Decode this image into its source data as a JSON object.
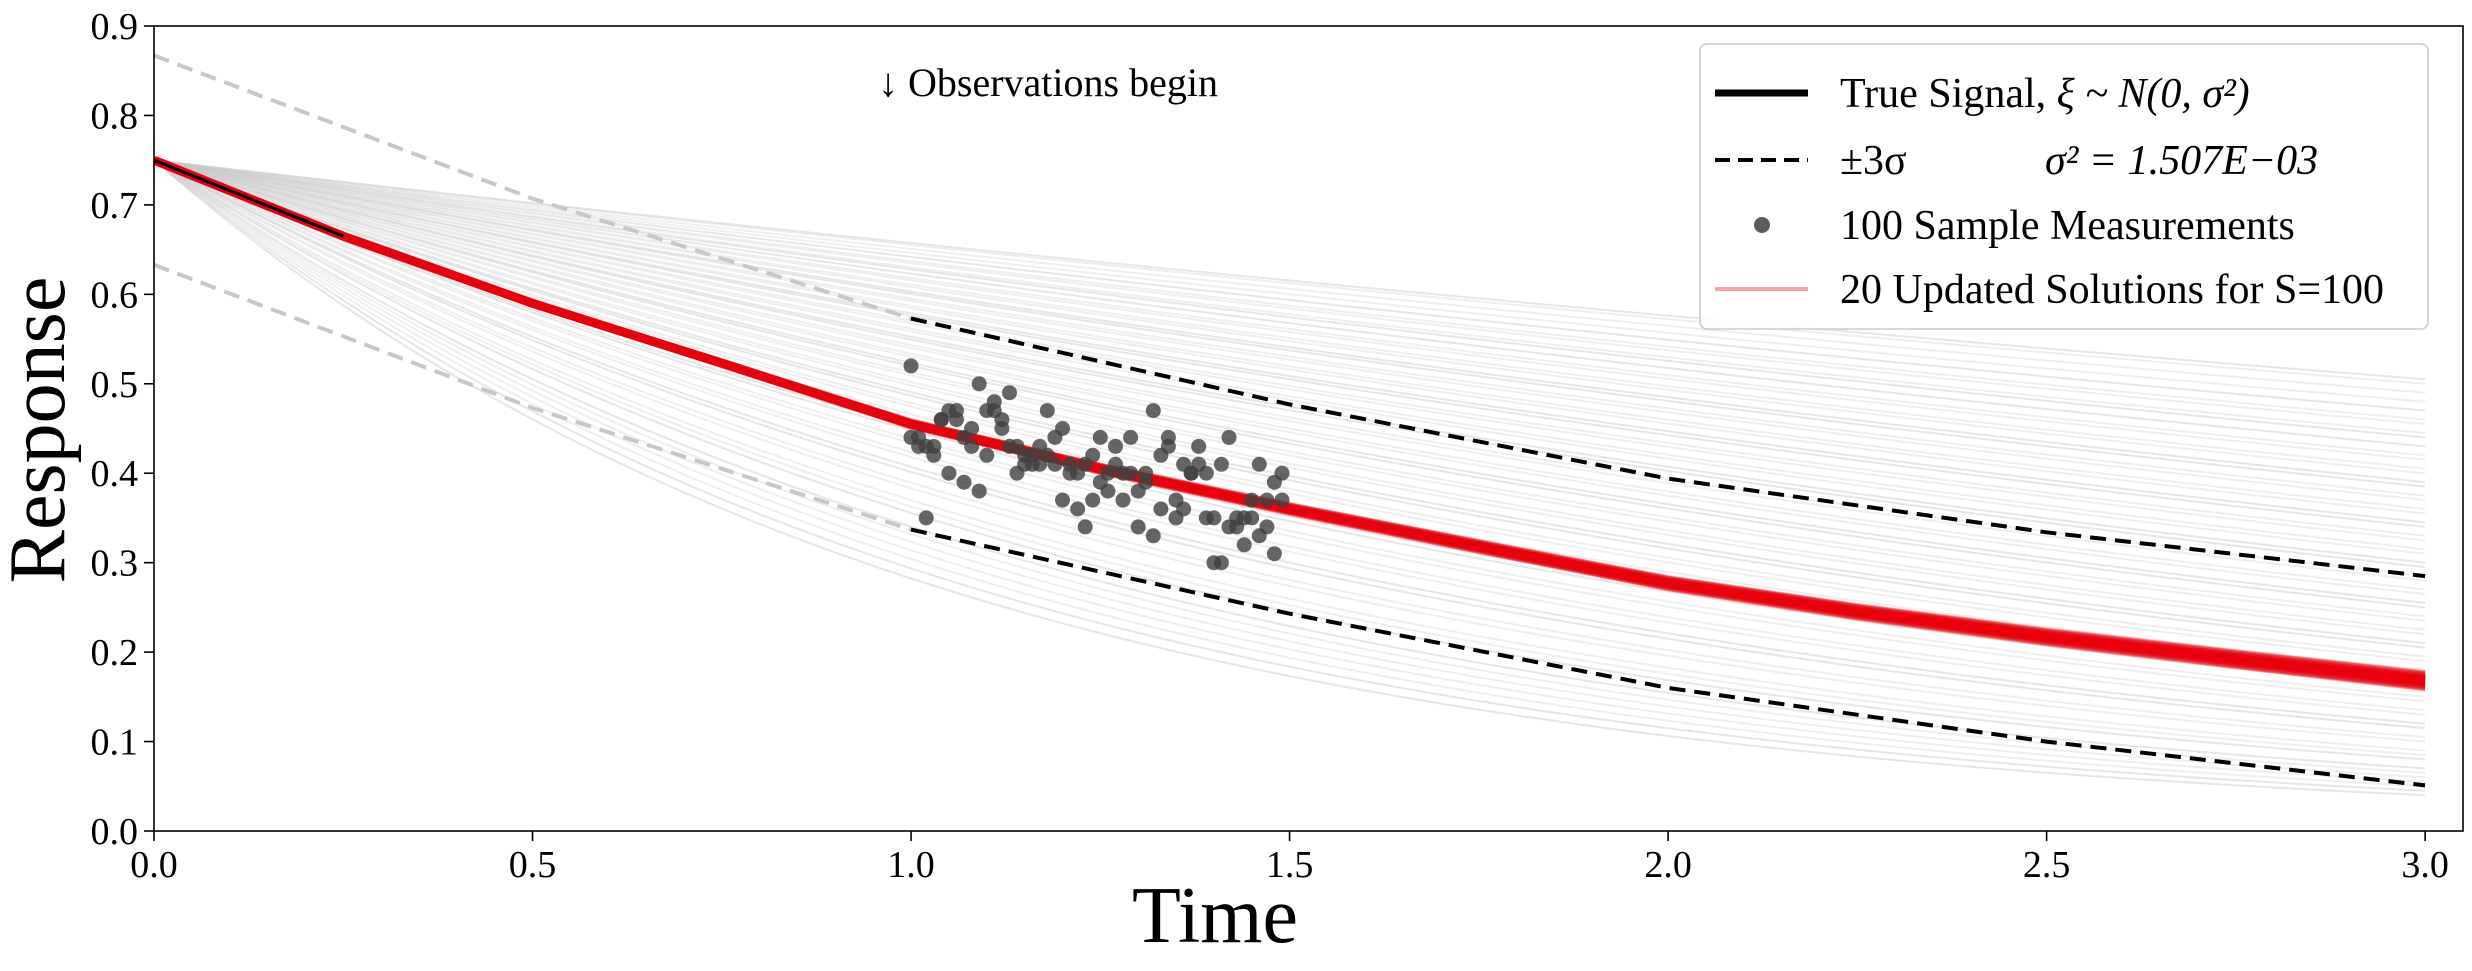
{
  "chart_data": {
    "type": "line",
    "xlabel": "Time",
    "ylabel": "Response",
    "xlim": [
      0.0,
      3.05
    ],
    "ylim": [
      0.0,
      0.9
    ],
    "x_ticks": [
      "0.0",
      "0.5",
      "1.0",
      "1.5",
      "2.0",
      "2.5",
      "3.0"
    ],
    "y_ticks": [
      "0.0",
      "0.1",
      "0.2",
      "0.3",
      "0.4",
      "0.5",
      "0.6",
      "0.7",
      "0.8",
      "0.9"
    ],
    "grid": false,
    "legend_position": "top-right",
    "annotation": "↓ Observations begin",
    "true_signal": {
      "name": "True Signal, ξ ~ N(0, σ²)",
      "x": [
        0.0,
        0.25,
        0.5,
        0.75,
        1.0,
        1.25,
        1.5,
        1.75,
        2.0,
        2.25,
        2.5,
        2.75,
        3.0
      ],
      "y": [
        0.75,
        0.665,
        0.59,
        0.523,
        0.455,
        0.405,
        0.36,
        0.318,
        0.277,
        0.245,
        0.217,
        0.192,
        0.168
      ]
    },
    "sigma_band": {
      "name": "±3σ",
      "sigma_sq_label": "σ² = 1.507E−03",
      "upper_x": [
        0.0,
        0.5,
        1.0,
        1.5,
        2.0,
        2.5,
        3.0
      ],
      "upper_y": [
        0.867,
        0.707,
        0.573,
        0.477,
        0.394,
        0.334,
        0.285
      ],
      "lower_x": [
        0.0,
        0.5,
        1.0,
        1.5,
        2.0,
        2.5,
        3.0
      ],
      "lower_y": [
        0.633,
        0.473,
        0.337,
        0.243,
        0.16,
        0.1,
        0.051
      ],
      "observed_from": 1.0
    },
    "measurements": {
      "name": "100 Sample Measurements",
      "x": [
        1.0,
        1.01,
        1.02,
        1.03,
        1.04,
        1.05,
        1.06,
        1.07,
        1.08,
        1.09,
        1.1,
        1.11,
        1.12,
        1.13,
        1.14,
        1.15,
        1.16,
        1.17,
        1.18,
        1.19,
        1.2,
        1.21,
        1.22,
        1.23,
        1.24,
        1.25,
        1.26,
        1.27,
        1.28,
        1.29,
        1.3,
        1.31,
        1.32,
        1.33,
        1.34,
        1.35,
        1.36,
        1.37,
        1.38,
        1.39,
        1.4,
        1.41,
        1.42,
        1.43,
        1.44,
        1.45,
        1.46,
        1.47,
        1.48,
        1.49,
        1.0,
        1.02,
        1.04,
        1.06,
        1.08,
        1.1,
        1.12,
        1.14,
        1.16,
        1.18,
        1.2,
        1.22,
        1.24,
        1.26,
        1.28,
        1.3,
        1.32,
        1.34,
        1.36,
        1.38,
        1.4,
        1.42,
        1.44,
        1.46,
        1.48,
        1.01,
        1.03,
        1.05,
        1.07,
        1.09,
        1.11,
        1.13,
        1.15,
        1.17,
        1.19,
        1.21,
        1.23,
        1.25,
        1.27,
        1.29,
        1.31,
        1.33,
        1.35,
        1.37,
        1.39,
        1.41,
        1.43,
        1.45,
        1.47,
        1.49
      ],
      "y": [
        0.52,
        0.44,
        0.35,
        0.43,
        0.46,
        0.4,
        0.47,
        0.39,
        0.45,
        0.5,
        0.42,
        0.48,
        0.45,
        0.43,
        0.4,
        0.41,
        0.41,
        0.41,
        0.47,
        0.44,
        0.37,
        0.41,
        0.4,
        0.34,
        0.42,
        0.44,
        0.38,
        0.43,
        0.4,
        0.44,
        0.34,
        0.4,
        0.47,
        0.36,
        0.44,
        0.37,
        0.41,
        0.4,
        0.41,
        0.35,
        0.3,
        0.41,
        0.44,
        0.35,
        0.32,
        0.37,
        0.41,
        0.34,
        0.39,
        0.37,
        0.44,
        0.43,
        0.46,
        0.46,
        0.43,
        0.47,
        0.46,
        0.43,
        0.42,
        0.42,
        0.45,
        0.36,
        0.37,
        0.4,
        0.37,
        0.38,
        0.33,
        0.43,
        0.36,
        0.43,
        0.35,
        0.34,
        0.35,
        0.33,
        0.31,
        0.43,
        0.42,
        0.47,
        0.44,
        0.38,
        0.47,
        0.49,
        0.42,
        0.43,
        0.41,
        0.4,
        0.41,
        0.39,
        0.41,
        0.4,
        0.39,
        0.42,
        0.35,
        0.4,
        0.4,
        0.3,
        0.34,
        0.35,
        0.37,
        0.4
      ]
    },
    "updated_solutions": {
      "name": "20 Updated Solutions for S=100",
      "count": 20,
      "color": "#e8000b"
    },
    "prior_samples": {
      "start_y": 0.75,
      "end_values_at_3": [
        0.505,
        0.5,
        0.49,
        0.47,
        0.455,
        0.445,
        0.43,
        0.415,
        0.4,
        0.385,
        0.37,
        0.355,
        0.34,
        0.325,
        0.31,
        0.295,
        0.28,
        0.265,
        0.25,
        0.235,
        0.22,
        0.205,
        0.19,
        0.175,
        0.16,
        0.145,
        0.13,
        0.115,
        0.1,
        0.085,
        0.07,
        0.06,
        0.05,
        0.04,
        0.48,
        0.46,
        0.44,
        0.42,
        0.405,
        0.39,
        0.375,
        0.36,
        0.345,
        0.33,
        0.315,
        0.3,
        0.285,
        0.27,
        0.255,
        0.24,
        0.225,
        0.21,
        0.195,
        0.18,
        0.165,
        0.15,
        0.135,
        0.12,
        0.105,
        0.09,
        0.08,
        0.065,
        0.055,
        0.045
      ]
    },
    "colors": {
      "true_signal": "#000000",
      "updated": "#e8000b",
      "legend_updated": "#f4a6a6",
      "prior": "#c8c8c8",
      "measurement": "#404040",
      "band_prior": "#c8c8c8"
    }
  },
  "legend": {
    "items": [
      {
        "label": "True Signal, ",
        "math": "ξ ~ N(0, σ²)"
      },
      {
        "label": "±3σ",
        "math": "σ² = 1.507E−03"
      },
      {
        "label": "100 Sample Measurements",
        "math": ""
      },
      {
        "label": "20 Updated Solutions for S=100",
        "math": ""
      }
    ]
  }
}
